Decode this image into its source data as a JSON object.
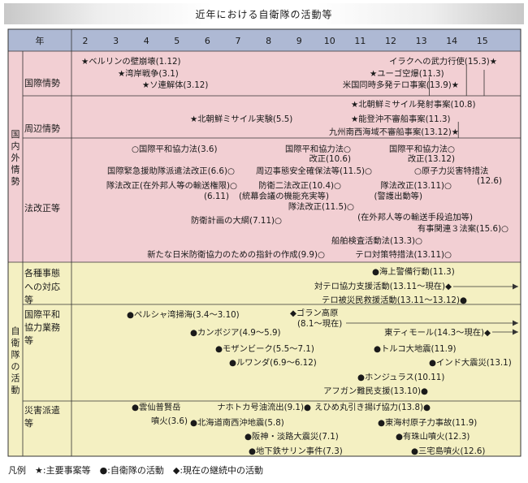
{
  "title": "近年における自衛隊の活動等",
  "header": {
    "year_label": "年",
    "years": [
      "2",
      "3",
      "4",
      "5",
      "6",
      "7",
      "8",
      "9",
      "10",
      "11",
      "12",
      "13",
      "14",
      "15"
    ]
  },
  "sections": [
    {
      "label": "国内外情勢",
      "rows": [
        {
          "label": "国際情勢"
        },
        {
          "label": "周辺情勢"
        },
        {
          "label": "法改正等"
        }
      ]
    },
    {
      "label": "自衛隊の活動",
      "rows": [
        {
          "label": "各種事態への対応等"
        },
        {
          "label": "国際平和協力業務等"
        },
        {
          "label": "災害派遣等"
        }
      ]
    }
  ],
  "events": [
    {
      "text": "★ベルリンの壁崩壊(1.12)"
    },
    {
      "text": "★湾岸戦争(3.1)"
    },
    {
      "text": "★ソ連解体(3.12)"
    },
    {
      "text": "イラクへの武力行使(15.3)★"
    },
    {
      "text": "★ユーゴ空爆(11.3)"
    },
    {
      "text": "米国同時多発テロ事案(13.9)★"
    },
    {
      "text": "★北朝鮮ミサイル発射事案(10.8)"
    },
    {
      "text": "★北朝鮮ミサイル実験(5.5)"
    },
    {
      "text": "★能登沖不審船事案(11.3)"
    },
    {
      "text": "九州南西海域不審船事案(13.12)★"
    },
    {
      "text": "○国際平和協力法(3.6)"
    },
    {
      "text": "国際平和協力法○"
    },
    {
      "text": "改正(10.6)"
    },
    {
      "text": "国際平和協力法○"
    },
    {
      "text": "改正(13.12)"
    },
    {
      "text": "国際緊急援助隊派遣法改正(6.6)○"
    },
    {
      "text": "周辺事態安全確保法等(11.5)○"
    },
    {
      "text": "○原子力災害特措法"
    },
    {
      "text": "(12.6)"
    },
    {
      "text": "隊法改正(在外邦人等の輸送権限)○"
    },
    {
      "text": "(6.11)"
    },
    {
      "text": "防衛二法改正(10.4)○"
    },
    {
      "text": "(統幕会議の機能充実等)"
    },
    {
      "text": "隊法改正(13.11)○"
    },
    {
      "text": "(警護出動等)"
    },
    {
      "text": "隊法改正(11.5)○"
    },
    {
      "text": "(在外邦人等の輸送手段追加等)"
    },
    {
      "text": "防衛計画の大綱(7.11)○"
    },
    {
      "text": "有事関連３法案(15.6)○"
    },
    {
      "text": "船舶検査活動法(13.3)○"
    },
    {
      "text": "新たな日米防衛協力のための指針の作成(9.9)○"
    },
    {
      "text": "テロ対策特措法(13.11)○"
    },
    {
      "text": "●海上警備行動(11.3)"
    },
    {
      "text": "対テロ協力支援活動(13.11〜現在)◆"
    },
    {
      "text": "テロ被災民救援活動(13.11〜13.12)●"
    },
    {
      "text": "●ペルシャ湾掃海(3.4〜3.10)"
    },
    {
      "text": "◆ゴラン高原"
    },
    {
      "text": "(8.1〜現在)"
    },
    {
      "text": "●カンボジア(4.9〜5.9)"
    },
    {
      "text": "東ティモール(14.3〜現在)◆"
    },
    {
      "text": "●モザンビーク(5.5〜7.1)"
    },
    {
      "text": "●トルコ大地震(11.9)"
    },
    {
      "text": "●インド大震災(13.1)"
    },
    {
      "text": "●ルワンダ(6.9〜6.12)"
    },
    {
      "text": "●ホンジュラス(10.11)"
    },
    {
      "text": "アフガン難民支援(13.10)●"
    },
    {
      "text": "●雲仙普賢岳"
    },
    {
      "text": "噴火(3.6)"
    },
    {
      "text": "ナホトカ号油流出(9.1)●"
    },
    {
      "text": "えひめ丸引き揚げ協力(13.8)●"
    },
    {
      "text": "●北海道南西沖地震(5.8)"
    },
    {
      "text": "●東海村原子力事故(11.9)"
    },
    {
      "text": "●阪神・淡路大震災(7.1)"
    },
    {
      "text": "●有珠山噴火(12.3)"
    },
    {
      "text": "●地下鉄サリン事件(7.3)"
    },
    {
      "text": "●三宅島噴火(12.6)"
    }
  ],
  "legend": "凡例　★:主要事案等　●:自衛隊の活動　◆:現在の継続中の活動",
  "colors": {
    "header_bg": "#aeb9d4",
    "upper_bg": "#f2cfd3",
    "lower_bg": "#f4f0c2",
    "border": "#333333"
  }
}
